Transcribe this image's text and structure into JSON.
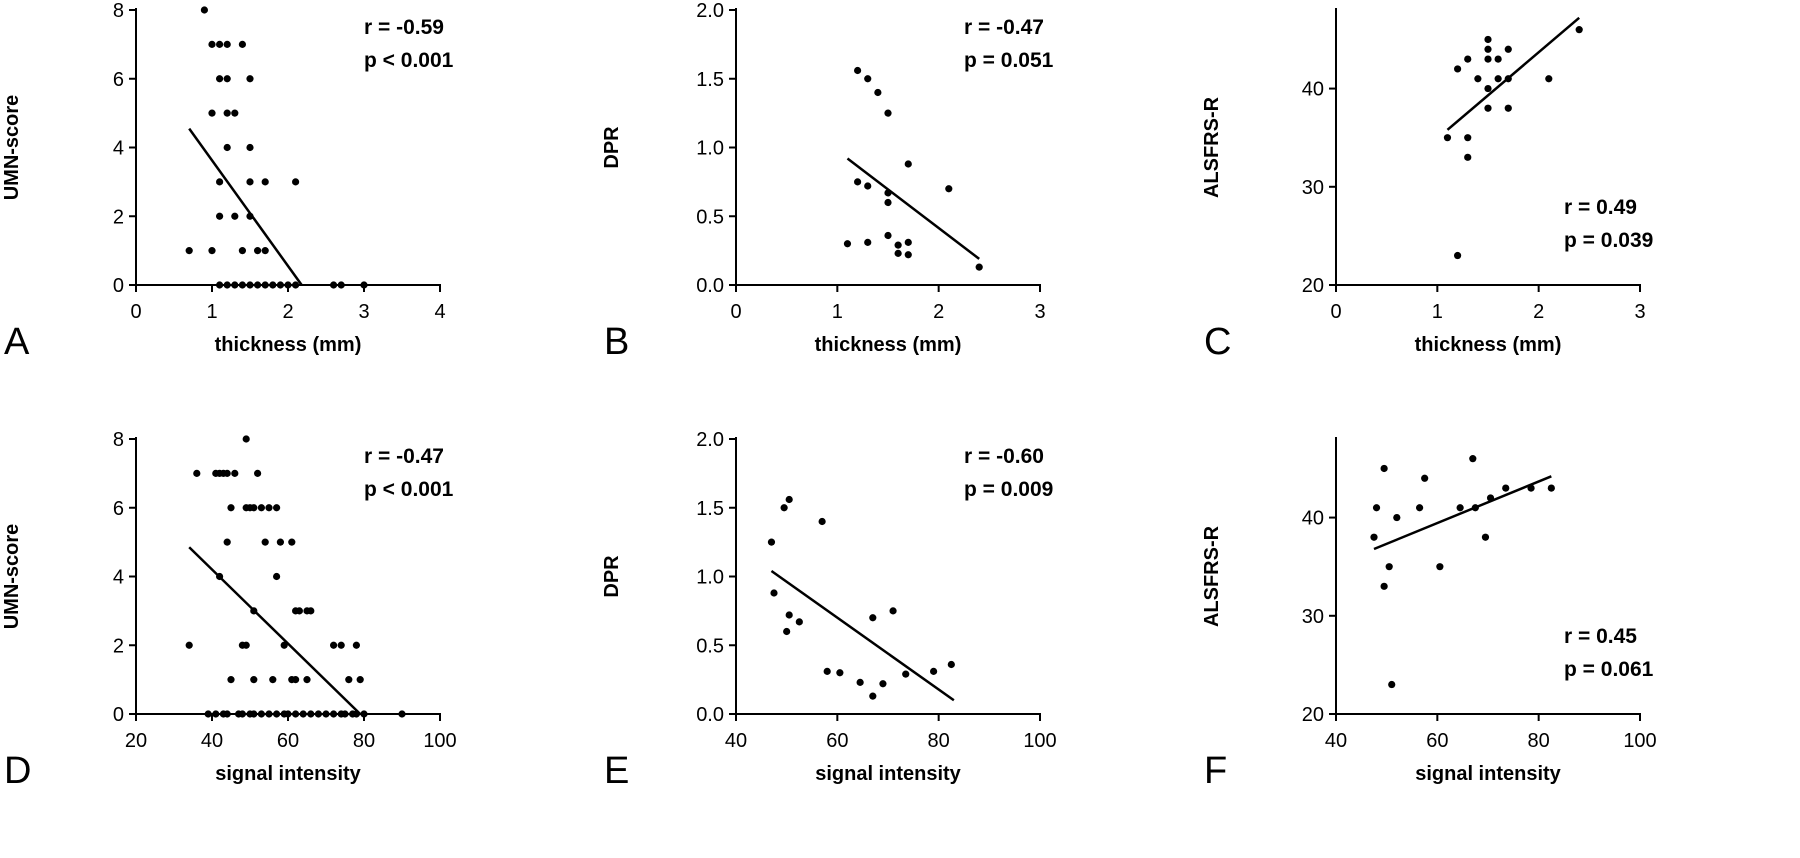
{
  "chart_data": [
    {
      "panel": "A",
      "type": "scatter",
      "xlabel": "thickness (mm)",
      "ylabel": "UMN-score",
      "xlim": [
        0,
        4
      ],
      "ylim": [
        0,
        8
      ],
      "xticks": [
        0,
        1,
        2,
        3,
        4
      ],
      "yticks": [
        0,
        2,
        4,
        6,
        8
      ],
      "tick_decimals": 0,
      "stats": {
        "r": "r = -0.59",
        "p": "p < 0.001",
        "placement": "top-right"
      },
      "fit": [
        [
          0.7,
          4.55
        ],
        [
          2.18,
          0
        ]
      ],
      "points": [
        [
          0.9,
          8
        ],
        [
          1.0,
          7
        ],
        [
          1.1,
          7
        ],
        [
          1.2,
          7
        ],
        [
          1.4,
          7
        ],
        [
          1.1,
          6
        ],
        [
          1.2,
          6
        ],
        [
          1.5,
          6
        ],
        [
          1.0,
          5
        ],
        [
          1.2,
          5
        ],
        [
          1.3,
          5
        ],
        [
          1.2,
          4
        ],
        [
          1.5,
          4
        ],
        [
          1.1,
          3
        ],
        [
          1.5,
          3
        ],
        [
          1.7,
          3
        ],
        [
          2.1,
          3
        ],
        [
          1.1,
          2
        ],
        [
          1.3,
          2
        ],
        [
          1.5,
          2
        ],
        [
          0.7,
          1
        ],
        [
          1.0,
          1
        ],
        [
          1.4,
          1
        ],
        [
          1.6,
          1
        ],
        [
          1.7,
          1
        ],
        [
          1.1,
          0
        ],
        [
          1.2,
          0
        ],
        [
          1.3,
          0
        ],
        [
          1.4,
          0
        ],
        [
          1.5,
          0
        ],
        [
          1.6,
          0
        ],
        [
          1.7,
          0
        ],
        [
          1.8,
          0
        ],
        [
          1.9,
          0
        ],
        [
          2.0,
          0
        ],
        [
          2.1,
          0
        ],
        [
          2.6,
          0
        ],
        [
          2.7,
          0
        ],
        [
          3.0,
          0
        ]
      ]
    },
    {
      "panel": "B",
      "type": "scatter",
      "xlabel": "thickness (mm)",
      "ylabel": "DPR",
      "xlim": [
        0,
        3
      ],
      "ylim": [
        0,
        2
      ],
      "xticks": [
        0,
        1,
        2,
        3
      ],
      "yticks": [
        0,
        0.5,
        1.0,
        1.5,
        2.0
      ],
      "tick_decimals": 1,
      "stats": {
        "r": "r = -0.47",
        "p": "p = 0.051",
        "placement": "top-right"
      },
      "fit": [
        [
          1.1,
          0.92
        ],
        [
          2.4,
          0.19
        ]
      ],
      "points": [
        [
          1.2,
          1.56
        ],
        [
          1.3,
          1.5
        ],
        [
          1.4,
          1.4
        ],
        [
          1.5,
          1.25
        ],
        [
          1.7,
          0.88
        ],
        [
          1.2,
          0.75
        ],
        [
          1.3,
          0.72
        ],
        [
          2.1,
          0.7
        ],
        [
          1.5,
          0.67
        ],
        [
          1.5,
          0.6
        ],
        [
          1.5,
          0.36
        ],
        [
          1.6,
          0.29
        ],
        [
          1.7,
          0.31
        ],
        [
          1.1,
          0.3
        ],
        [
          1.3,
          0.31
        ],
        [
          1.6,
          0.23
        ],
        [
          1.7,
          0.22
        ],
        [
          2.4,
          0.13
        ]
      ]
    },
    {
      "panel": "C",
      "type": "scatter",
      "xlabel": "thickness (mm)",
      "ylabel": "ALSFRS-R",
      "xlim": [
        0,
        3
      ],
      "ylim": [
        20,
        48
      ],
      "xticks": [
        0,
        1,
        2,
        3
      ],
      "yticks": [
        20,
        30,
        40
      ],
      "tick_decimals": 0,
      "stats": {
        "r": "r = 0.49",
        "p": "p = 0.039",
        "placement": "bottom-right"
      },
      "fit": [
        [
          1.1,
          35.8
        ],
        [
          2.4,
          47.2
        ]
      ],
      "points": [
        [
          1.5,
          45
        ],
        [
          2.4,
          46
        ],
        [
          1.5,
          44
        ],
        [
          1.7,
          44
        ],
        [
          1.3,
          43
        ],
        [
          1.5,
          43
        ],
        [
          1.6,
          43
        ],
        [
          1.2,
          42
        ],
        [
          1.4,
          41
        ],
        [
          1.6,
          41
        ],
        [
          1.7,
          41
        ],
        [
          2.1,
          41
        ],
        [
          1.5,
          40
        ],
        [
          1.5,
          38
        ],
        [
          1.7,
          38
        ],
        [
          1.1,
          35
        ],
        [
          1.3,
          35
        ],
        [
          1.3,
          33
        ],
        [
          1.2,
          23
        ]
      ]
    },
    {
      "panel": "D",
      "type": "scatter",
      "xlabel": "signal intensity",
      "ylabel": "UMN-score",
      "xlim": [
        20,
        100
      ],
      "ylim": [
        0,
        8
      ],
      "xticks": [
        20,
        40,
        60,
        80,
        100
      ],
      "yticks": [
        0,
        2,
        4,
        6,
        8
      ],
      "tick_decimals": 0,
      "stats": {
        "r": "r = -0.47",
        "p": "p < 0.001",
        "placement": "top-right"
      },
      "fit": [
        [
          34,
          4.85
        ],
        [
          79,
          0
        ]
      ],
      "points": [
        [
          49,
          8
        ],
        [
          36,
          7
        ],
        [
          41,
          7
        ],
        [
          42,
          7
        ],
        [
          43,
          7
        ],
        [
          44,
          7
        ],
        [
          46,
          7
        ],
        [
          52,
          7
        ],
        [
          45,
          6
        ],
        [
          49,
          6
        ],
        [
          50,
          6
        ],
        [
          51,
          6
        ],
        [
          53,
          6
        ],
        [
          55,
          6
        ],
        [
          57,
          6
        ],
        [
          44,
          5
        ],
        [
          54,
          5
        ],
        [
          58,
          5
        ],
        [
          61,
          5
        ],
        [
          42,
          4
        ],
        [
          57,
          4
        ],
        [
          51,
          3
        ],
        [
          62,
          3
        ],
        [
          63,
          3
        ],
        [
          65,
          3
        ],
        [
          66,
          3
        ],
        [
          34,
          2
        ],
        [
          48,
          2
        ],
        [
          49,
          2
        ],
        [
          59,
          2
        ],
        [
          72,
          2
        ],
        [
          74,
          2
        ],
        [
          78,
          2
        ],
        [
          45,
          1
        ],
        [
          51,
          1
        ],
        [
          56,
          1
        ],
        [
          61,
          1
        ],
        [
          62,
          1
        ],
        [
          65,
          1
        ],
        [
          76,
          1
        ],
        [
          79,
          1
        ],
        [
          39,
          0
        ],
        [
          41,
          0
        ],
        [
          43,
          0
        ],
        [
          44,
          0
        ],
        [
          47,
          0
        ],
        [
          48,
          0
        ],
        [
          50,
          0
        ],
        [
          51,
          0
        ],
        [
          53,
          0
        ],
        [
          55,
          0
        ],
        [
          57,
          0
        ],
        [
          59,
          0
        ],
        [
          60,
          0
        ],
        [
          62,
          0
        ],
        [
          64,
          0
        ],
        [
          66,
          0
        ],
        [
          68,
          0
        ],
        [
          70,
          0
        ],
        [
          72,
          0
        ],
        [
          74,
          0
        ],
        [
          75,
          0
        ],
        [
          77,
          0
        ],
        [
          78,
          0
        ],
        [
          80,
          0
        ],
        [
          90,
          0
        ]
      ]
    },
    {
      "panel": "E",
      "type": "scatter",
      "xlabel": "signal intensity",
      "ylabel": "DPR",
      "xlim": [
        40,
        100
      ],
      "ylim": [
        0,
        2
      ],
      "xticks": [
        40,
        60,
        80,
        100
      ],
      "yticks": [
        0,
        0.5,
        1.0,
        1.5,
        2.0
      ],
      "tick_decimals": 1,
      "stats": {
        "r": "r = -0.60",
        "p": "p = 0.009",
        "placement": "top-right"
      },
      "fit": [
        [
          47,
          1.04
        ],
        [
          83,
          0.1
        ]
      ],
      "points": [
        [
          50.5,
          1.56
        ],
        [
          49.5,
          1.5
        ],
        [
          57,
          1.4
        ],
        [
          47,
          1.25
        ],
        [
          47.5,
          0.88
        ],
        [
          71,
          0.75
        ],
        [
          50.5,
          0.72
        ],
        [
          67,
          0.7
        ],
        [
          52.5,
          0.67
        ],
        [
          50,
          0.6
        ],
        [
          82.5,
          0.36
        ],
        [
          58,
          0.31
        ],
        [
          60.5,
          0.3
        ],
        [
          73.5,
          0.29
        ],
        [
          79,
          0.31
        ],
        [
          64.5,
          0.23
        ],
        [
          69,
          0.22
        ],
        [
          67,
          0.13
        ]
      ]
    },
    {
      "panel": "F",
      "type": "scatter",
      "xlabel": "signal intensity",
      "ylabel": "ALSFRS-R",
      "xlim": [
        40,
        100
      ],
      "ylim": [
        20,
        48
      ],
      "xticks": [
        40,
        60,
        80,
        100
      ],
      "yticks": [
        20,
        30,
        40
      ],
      "tick_decimals": 0,
      "stats": {
        "r": "r = 0.45",
        "p": "p = 0.061",
        "placement": "bottom-right"
      },
      "fit": [
        [
          47.5,
          36.8
        ],
        [
          82.5,
          44.2
        ]
      ],
      "points": [
        [
          49.5,
          45
        ],
        [
          67,
          46
        ],
        [
          57.5,
          44
        ],
        [
          73.5,
          43
        ],
        [
          78.5,
          43
        ],
        [
          82.5,
          43
        ],
        [
          70.5,
          42
        ],
        [
          48,
          41
        ],
        [
          56.5,
          41
        ],
        [
          64.5,
          41
        ],
        [
          67.5,
          41
        ],
        [
          52,
          40
        ],
        [
          47.5,
          38
        ],
        [
          69.5,
          38
        ],
        [
          50.5,
          35
        ],
        [
          60.5,
          35
        ],
        [
          49.5,
          33
        ],
        [
          51,
          23
        ]
      ]
    }
  ]
}
